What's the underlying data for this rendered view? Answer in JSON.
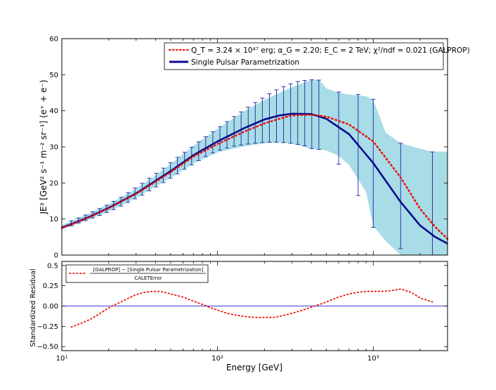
{
  "chart_data": [
    {
      "panel": "main",
      "type": "line",
      "xscale": "log",
      "xlim": [
        10,
        3000
      ],
      "ylim": [
        0,
        60
      ],
      "ylabel": "JE³ [GeV² s⁻¹ m⁻² sr⁻¹] (e⁺ + e⁻)",
      "yticks": [
        "0",
        "10",
        "20",
        "30",
        "40",
        "50",
        "60"
      ],
      "legend": {
        "location": "top-right",
        "entries": [
          "Q_T = 3.24 × 10⁴⁷ erg; α_G = 2.20; E_C = 2 TeV; χ²/ndf = 0.021 (GALPROP)",
          "Single Pulsar Parametrization"
        ]
      },
      "series": [
        {
          "name": "GALPROP",
          "style": "dotted",
          "color": "#e8140c",
          "x": [
            10,
            12,
            15,
            20,
            25,
            30,
            40,
            50,
            70,
            100,
            150,
            200,
            250,
            300,
            400,
            500,
            700,
            1000,
            1500,
            2000,
            2500,
            3000
          ],
          "y": [
            7.5,
            8.8,
            10.5,
            13,
            15.2,
            17,
            20.3,
            23,
            27.3,
            30.8,
            34.3,
            36.5,
            37.8,
            38.7,
            38.9,
            38.4,
            36.2,
            31.5,
            21.5,
            12.8,
            7.8,
            4.5
          ]
        },
        {
          "name": "Single Pulsar Parametrization",
          "style": "solid",
          "color": "#0b0b8c",
          "x": [
            10,
            12,
            15,
            20,
            25,
            30,
            40,
            50,
            70,
            100,
            150,
            200,
            250,
            300,
            400,
            500,
            700,
            1000,
            1500,
            2000,
            2500,
            3000
          ],
          "y": [
            7.6,
            8.9,
            10.6,
            13.1,
            15.3,
            17.1,
            20.6,
            23.3,
            27.7,
            31.5,
            35.3,
            37.6,
            38.7,
            39.2,
            39.1,
            37.8,
            33.5,
            25.5,
            14.7,
            8.2,
            5,
            3.2
          ]
        }
      ],
      "error_band": {
        "name": "CALET error",
        "color": "#a8dce6",
        "x": [
          10,
          12,
          15,
          20,
          25,
          30,
          40,
          50,
          70,
          100,
          150,
          200,
          250,
          300,
          400,
          450,
          500,
          600,
          700,
          900,
          1000,
          1200,
          1500,
          2000,
          2400,
          3000
        ],
        "upper": [
          8.3,
          9.8,
          11.6,
          14.1,
          16.4,
          18.4,
          22.1,
          25.3,
          30.3,
          35,
          40,
          43,
          45,
          46.5,
          48.6,
          48.5,
          46.2,
          45,
          44.5,
          44,
          43,
          34,
          31,
          29.5,
          28.7,
          28.7
        ],
        "lower": [
          7.2,
          8.3,
          9.8,
          12.1,
          14.1,
          15.8,
          19,
          21.4,
          25.4,
          28.5,
          30.2,
          31,
          31.2,
          30.9,
          29.5,
          29.3,
          29,
          27.5,
          25,
          17.5,
          8,
          4,
          0,
          0,
          0,
          0
        ]
      },
      "error_bars": {
        "color": "#2a35a8",
        "x": [
          11.5,
          12.8,
          14.2,
          15.8,
          17.5,
          19.4,
          21.5,
          24,
          26.6,
          29.5,
          32.8,
          36.4,
          40.4,
          44.9,
          49.8,
          55.3,
          61.4,
          68.2,
          75.7,
          84,
          93.3,
          103.6,
          115,
          127.7,
          141.7,
          157.4,
          174.7,
          194,
          215.4,
          239,
          265.5,
          294.7,
          327.2,
          363,
          403,
          447.5,
          600,
          800,
          1000,
          1500,
          2400
        ],
        "low": [
          8.1,
          8.9,
          9.6,
          10.3,
          11,
          11.8,
          12.6,
          13.6,
          14.6,
          15.6,
          16.6,
          17.8,
          18.9,
          20.1,
          21.3,
          22.5,
          23.8,
          25,
          26.2,
          27.3,
          28.3,
          29.1,
          29.7,
          30.2,
          30.5,
          30.8,
          31,
          31.2,
          31.3,
          31.3,
          31.2,
          31,
          30.7,
          30.3,
          29.5,
          29.3,
          25.2,
          16.5,
          7.7,
          1.8,
          0
        ],
        "high": [
          9.5,
          10.3,
          11.1,
          12,
          12.9,
          13.8,
          14.9,
          16,
          17.3,
          18.6,
          19.9,
          21.3,
          22.7,
          24.1,
          25.6,
          27.1,
          28.5,
          29.9,
          31.4,
          32.8,
          34.2,
          35.6,
          37,
          38.4,
          39.7,
          41,
          42.3,
          43.5,
          44.7,
          45.8,
          46.7,
          47.5,
          48.1,
          48.4,
          48.6,
          48.5,
          45.2,
          44.5,
          43.2,
          31,
          28.6
        ],
        "center": [
          8.8,
          9.6,
          10.35,
          11.15,
          11.95,
          12.8,
          13.75,
          14.8,
          15.95,
          17.1,
          18.25,
          19.55,
          20.8,
          22.1,
          23.45,
          24.8,
          26.15,
          27.45,
          28.8,
          30.05,
          31.25,
          32.35,
          33.35,
          34.3,
          35.1,
          35.9,
          36.65,
          37.35,
          38,
          38.55,
          38.95,
          39.25,
          39.4,
          39.35,
          39.05,
          38.9,
          35.2,
          30.5,
          25.5,
          16.4,
          14.3
        ]
      }
    },
    {
      "panel": "residual",
      "type": "line",
      "xscale": "log",
      "xlim": [
        10,
        3000
      ],
      "ylim": [
        -0.55,
        0.55
      ],
      "xlabel": "Energy [GeV]",
      "ylabel": "Standardized Residual",
      "yticks": [
        "−0.50",
        "−0.25",
        "0.00",
        "0.25",
        "0.5"
      ],
      "ytick_values": [
        -0.5,
        -0.25,
        0,
        0.25,
        0.5
      ],
      "xticks": [
        "10¹",
        "10²",
        "10³"
      ],
      "legend": {
        "location": "top-left",
        "entries": [
          "[GALPROP] − [Single Pulsar Parametrization]",
          "CALETError"
        ]
      },
      "zero_line_color": "#3b3bd6",
      "series": [
        {
          "name": "residual",
          "style": "dotted",
          "color": "#e8140c",
          "x": [
            11.5,
            13,
            15,
            17,
            19,
            21,
            24,
            27,
            30,
            34,
            38,
            43,
            50,
            60,
            70,
            80,
            90,
            100,
            115,
            130,
            150,
            175,
            200,
            230,
            260,
            300,
            340,
            380,
            420,
            470,
            530,
            600,
            700,
            800,
            900,
            1000,
            1150,
            1300,
            1500,
            1750,
            2000,
            2400
          ],
          "y": [
            -0.26,
            -0.22,
            -0.17,
            -0.11,
            -0.05,
            0,
            0.05,
            0.1,
            0.14,
            0.17,
            0.18,
            0.18,
            0.15,
            0.11,
            0.06,
            0.02,
            -0.02,
            -0.05,
            -0.09,
            -0.11,
            -0.13,
            -0.14,
            -0.14,
            -0.14,
            -0.12,
            -0.09,
            -0.06,
            -0.03,
            0,
            0.03,
            0.07,
            0.11,
            0.15,
            0.17,
            0.18,
            0.18,
            0.18,
            0.19,
            0.21,
            0.17,
            0.1,
            0.05
          ]
        }
      ]
    }
  ]
}
